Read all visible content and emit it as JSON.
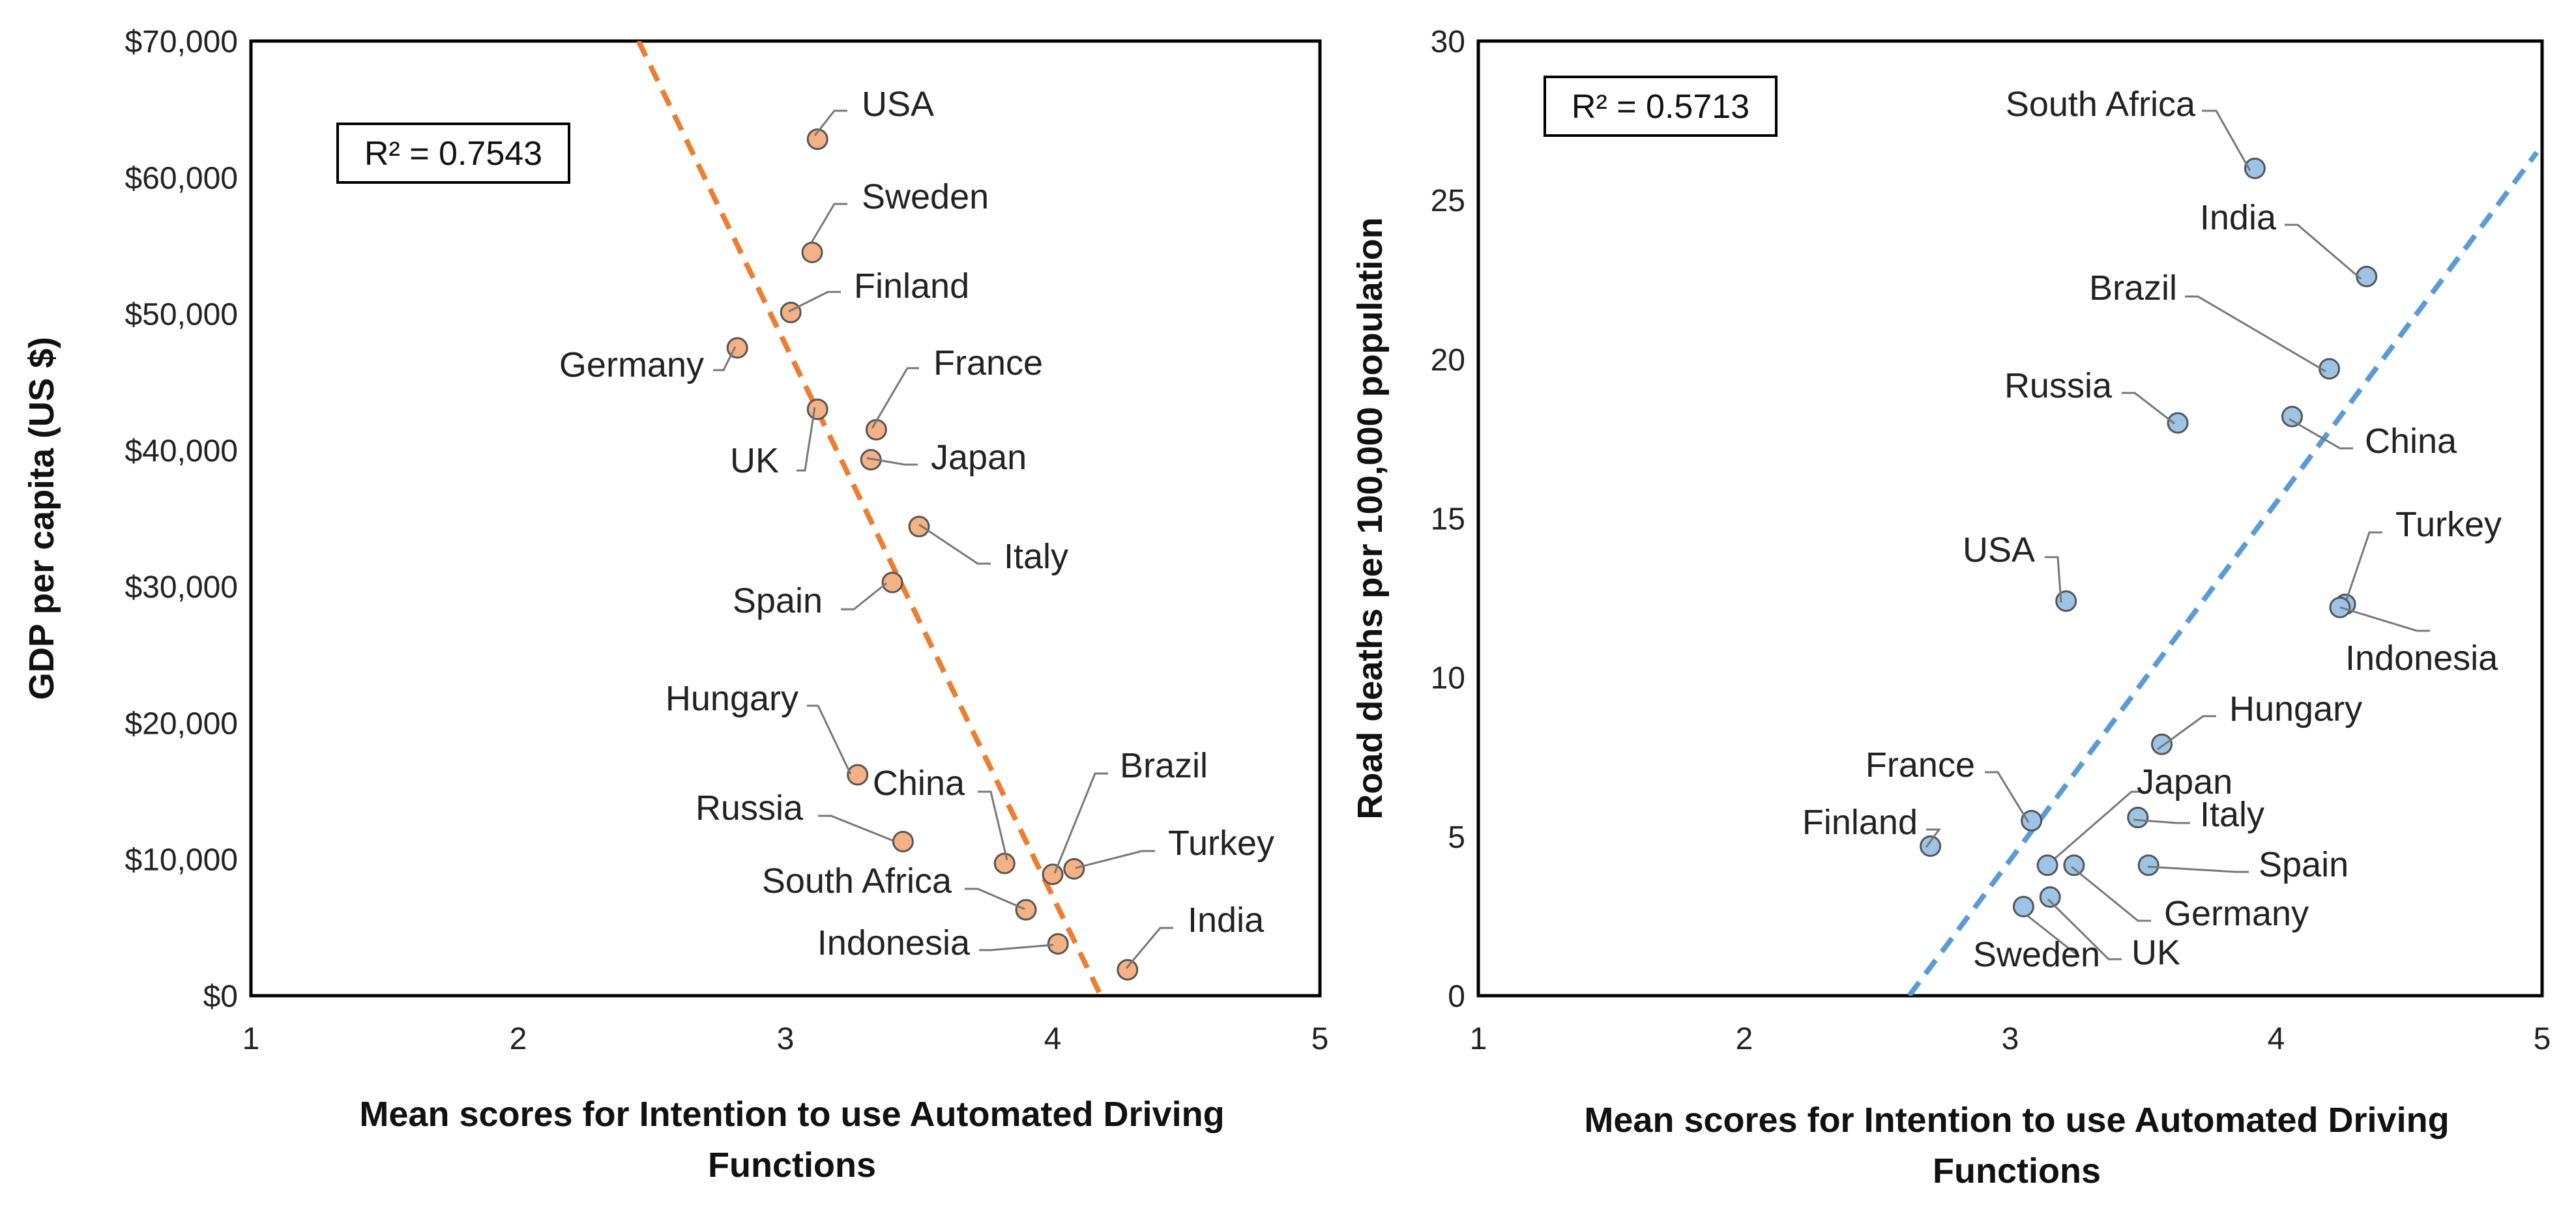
{
  "chart_data": [
    {
      "type": "scatter",
      "xlabel": "Mean scores for Intention to use Automated Driving Functions",
      "ylabel": "GDP per capita (US $)",
      "xlim": [
        1,
        5
      ],
      "ylim": [
        0,
        70000
      ],
      "x_ticks": [
        "1",
        "2",
        "3",
        "4",
        "5"
      ],
      "y_ticks": [
        "$0",
        "$10,000",
        "$20,000",
        "$30,000",
        "$40,000",
        "$50,000",
        "$60,000",
        "$70,000"
      ],
      "annotation": "R² = 0.7543",
      "marker_color": "#f4b183",
      "trendline_color": "#ed7d31",
      "trendline": [
        [
          2.45,
          70000
        ],
        [
          4.18,
          0
        ]
      ],
      "points": [
        {
          "name": "USA",
          "x": 3.12,
          "y": 62800
        },
        {
          "name": "Sweden",
          "x": 3.1,
          "y": 54500
        },
        {
          "name": "Finland",
          "x": 3.02,
          "y": 50100
        },
        {
          "name": "Germany",
          "x": 2.82,
          "y": 47500
        },
        {
          "name": "France",
          "x": 3.34,
          "y": 41500
        },
        {
          "name": "UK",
          "x": 3.12,
          "y": 43000
        },
        {
          "name": "Japan",
          "x": 3.32,
          "y": 39300
        },
        {
          "name": "Italy",
          "x": 3.5,
          "y": 34400
        },
        {
          "name": "Spain",
          "x": 3.4,
          "y": 30300
        },
        {
          "name": "Hungary",
          "x": 3.27,
          "y": 16200
        },
        {
          "name": "Russia",
          "x": 3.44,
          "y": 11300
        },
        {
          "name": "China",
          "x": 3.82,
          "y": 9700
        },
        {
          "name": "Brazil",
          "x": 4.0,
          "y": 8900
        },
        {
          "name": "Turkey",
          "x": 4.08,
          "y": 9300
        },
        {
          "name": "South Africa",
          "x": 3.9,
          "y": 6300
        },
        {
          "name": "Indonesia",
          "x": 4.02,
          "y": 3800
        },
        {
          "name": "India",
          "x": 4.28,
          "y": 1900
        }
      ]
    },
    {
      "type": "scatter",
      "xlabel": "Mean scores for Intention to use Automated Driving Functions",
      "ylabel": "Road deaths per 100,000 population",
      "xlim": [
        1,
        5
      ],
      "ylim": [
        0,
        30
      ],
      "x_ticks": [
        "1",
        "2",
        "3",
        "4",
        "5"
      ],
      "y_ticks": [
        "0",
        "5",
        "10",
        "15",
        "20",
        "25",
        "30"
      ],
      "annotation": "R² = 0.5713",
      "marker_color": "#9dc3e6",
      "trendline_color": "#5b9bd5",
      "trendline": [
        [
          2.62,
          0
        ],
        [
          4.98,
          26.5
        ]
      ],
      "points": [
        {
          "name": "South Africa",
          "x": 3.92,
          "y": 26.0
        },
        {
          "name": "India",
          "x": 4.34,
          "y": 22.6
        },
        {
          "name": "Brazil",
          "x": 4.2,
          "y": 19.7
        },
        {
          "name": "Russia",
          "x": 3.63,
          "y": 18.0
        },
        {
          "name": "China",
          "x": 4.06,
          "y": 18.2
        },
        {
          "name": "Turkey",
          "x": 4.26,
          "y": 12.3
        },
        {
          "name": "Indonesia",
          "x": 4.24,
          "y": 12.2
        },
        {
          "name": "USA",
          "x": 3.21,
          "y": 12.4
        },
        {
          "name": "Hungary",
          "x": 3.57,
          "y": 7.9
        },
        {
          "name": "France",
          "x": 3.08,
          "y": 5.5
        },
        {
          "name": "Japan",
          "x": 3.48,
          "y": 5.6
        },
        {
          "name": "Italy",
          "x": 3.48,
          "y": 5.6
        },
        {
          "name": "Finland",
          "x": 2.7,
          "y": 4.7
        },
        {
          "name": "Germany",
          "x": 3.24,
          "y": 4.1
        },
        {
          "name": "Spain",
          "x": 3.52,
          "y": 4.1
        },
        {
          "name": "Japan_pt",
          "x": 3.14,
          "y": 4.1
        },
        {
          "name": "UK",
          "x": 3.15,
          "y": 3.1
        },
        {
          "name": "Sweden",
          "x": 3.05,
          "y": 2.8
        }
      ]
    }
  ]
}
